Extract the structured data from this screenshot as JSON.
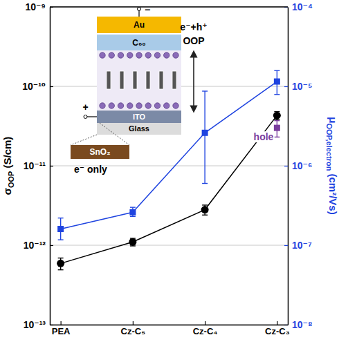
{
  "chart_data": {
    "type": "line",
    "categories": [
      "PEA",
      "Cz-C₅",
      "Cz-C₄",
      "Cz-C₃"
    ],
    "ylabel": "σOOP (S/cm)",
    "y2label": "μOOP,electron (cm²/Vs)",
    "ylim": [
      1e-13,
      1e-09
    ],
    "yticks": [
      {
        "value": 1e-13,
        "label": "10⁻¹³"
      },
      {
        "value": 1e-12,
        "label": "10⁻¹²"
      },
      {
        "value": 1e-11,
        "label": "10⁻¹¹"
      },
      {
        "value": 1e-10,
        "label": "10⁻¹⁰"
      },
      {
        "value": 1e-09,
        "label": "10⁻⁹"
      }
    ],
    "y2lim": [
      1e-08,
      0.0001
    ],
    "y2ticks": [
      {
        "value": 1e-08,
        "label": "10⁻⁸"
      },
      {
        "value": 1e-07,
        "label": "10⁻⁷"
      },
      {
        "value": 1e-06,
        "label": "10⁻⁶"
      },
      {
        "value": 1e-05,
        "label": "10⁻⁵"
      },
      {
        "value": 0.0001,
        "label": "10⁻⁴"
      }
    ],
    "log": "y",
    "grid": true,
    "series": [
      {
        "color": "#000000",
        "marker": "circle",
        "line_style": "solid",
        "values": [
          5.9e-13,
          1.1e-12,
          2.8e-12,
          4.3e-11
        ],
        "errors": [
          1e-13,
          1.2e-13,
          4e-13,
          5e-12
        ]
      },
      {
        "color": "#1f44e0",
        "marker": "square",
        "line_style": "solid",
        "axis": "y2",
        "values": [
          1.6e-07,
          2.6e-07,
          2.6e-06,
          1.15e-05
        ],
        "error_minus": [
          4.3e-08,
          3e-08,
          2e-06,
          3.6e-06
        ],
        "error_plus": [
          6e-08,
          4e-08,
          6.1e-06,
          4.3e-06
        ]
      },
      {
        "name": "hole",
        "type": "scatter",
        "color": "#7a3d9e",
        "marker": "square",
        "axis": "y2",
        "values": [
          null,
          null,
          null,
          3e-06
        ],
        "errors": [
          null,
          null,
          null,
          7e-07
        ]
      }
    ],
    "annotations": [
      "Au",
      "C₆₀",
      "ITO",
      "Glass",
      "SnO₂",
      "e⁻+h⁺",
      "OOP",
      "e⁻ only",
      "−",
      "+"
    ]
  }
}
